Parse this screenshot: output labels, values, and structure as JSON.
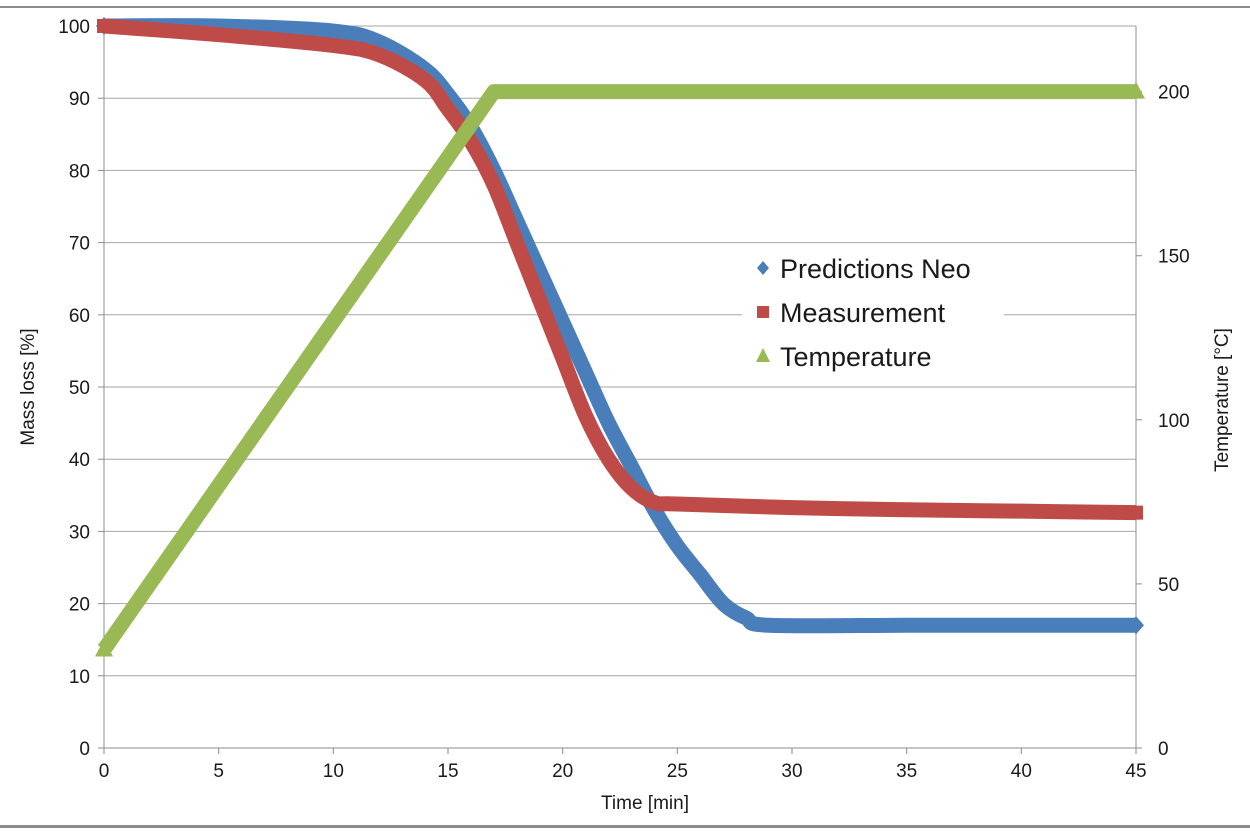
{
  "chart_data": {
    "type": "line",
    "xlabel": "Time [min]",
    "ylabel": "Mass loss [%]",
    "y2label": "Temperature [°C]",
    "xlim": [
      0,
      45
    ],
    "ylim": [
      0,
      100
    ],
    "y2lim": [
      0,
      220
    ],
    "x_ticks": [
      "0",
      "5",
      "10",
      "15",
      "20",
      "25",
      "30",
      "35",
      "40",
      "45"
    ],
    "y_ticks": [
      "0",
      "10",
      "20",
      "30",
      "40",
      "50",
      "60",
      "70",
      "80",
      "90",
      "100"
    ],
    "y2_ticks": [
      "0",
      "50",
      "100",
      "150",
      "200"
    ],
    "grid": true,
    "legend_position": "center-right",
    "series": [
      {
        "name": "Predictions Neo",
        "axis": "left",
        "color": "#4a7ebb",
        "marker": "diamond",
        "x": [
          0,
          5,
          10,
          12,
          14,
          15,
          16,
          17,
          18,
          19,
          20,
          21,
          22,
          23,
          24,
          25,
          26,
          27,
          28,
          29,
          35,
          40,
          45
        ],
        "y": [
          100,
          100,
          99.3,
          97.8,
          94,
          90.5,
          86,
          80,
          73,
          66,
          59,
          52,
          45,
          39,
          33,
          28,
          24,
          20,
          18,
          17,
          17,
          17,
          17
        ]
      },
      {
        "name": "Measurement",
        "axis": "left",
        "color": "#be4b48",
        "marker": "square",
        "x": [
          0,
          5,
          10,
          12,
          14,
          15,
          16,
          17,
          18,
          19,
          20,
          21,
          22,
          23,
          24,
          25,
          30,
          35,
          40,
          45
        ],
        "y": [
          100,
          98.8,
          97.3,
          96,
          92.5,
          88.5,
          84,
          78,
          70,
          62,
          54,
          46,
          40,
          36,
          34,
          33.8,
          33.3,
          33,
          32.8,
          32.6
        ]
      },
      {
        "name": "Temperature",
        "axis": "right",
        "color": "#98b954",
        "marker": "triangle",
        "x": [
          0,
          17,
          45
        ],
        "y": [
          30,
          200,
          200
        ]
      }
    ]
  }
}
